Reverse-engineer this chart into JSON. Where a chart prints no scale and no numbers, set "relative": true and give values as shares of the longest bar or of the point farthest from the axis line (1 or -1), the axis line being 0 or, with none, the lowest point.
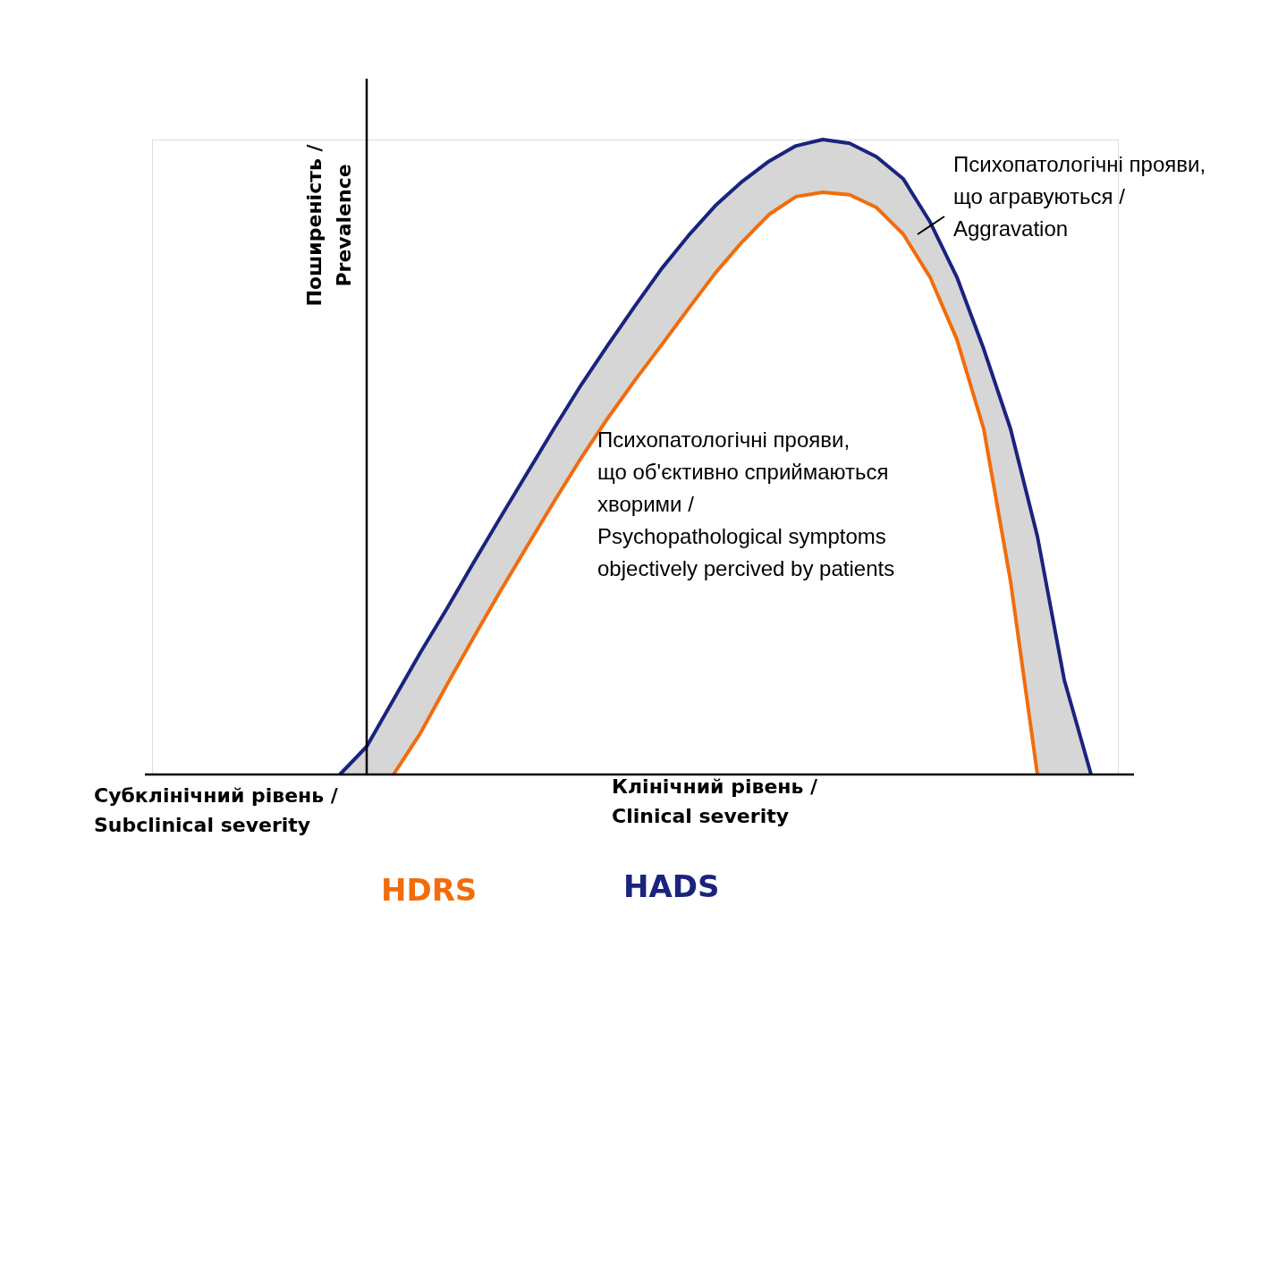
{
  "chart_data": {
    "type": "line",
    "relative": true,
    "legend": false,
    "line_style": "solid",
    "marker": "none",
    "ylabel": "Поширеність /\nPrevalence",
    "categories": [
      null,
      null,
      null,
      null,
      null,
      null,
      null,
      null,
      null,
      null,
      null,
      null,
      null,
      null,
      null,
      null,
      null,
      null,
      null,
      null,
      null,
      null,
      null,
      null,
      null,
      null,
      null,
      null,
      null,
      null,
      null,
      null,
      null,
      null,
      null,
      null,
      null
    ],
    "series": [
      {
        "name": "HADS",
        "color": "#1a237e",
        "values": [
          null,
          null,
          null,
          null,
          null,
          null,
          null,
          0,
          0.044,
          0.118,
          0.192,
          0.262,
          0.335,
          0.406,
          0.476,
          0.546,
          0.614,
          0.677,
          0.738,
          0.797,
          0.849,
          0.896,
          0.934,
          0.966,
          0.99,
          1.0,
          0.994,
          0.973,
          0.938,
          0.87,
          0.783,
          0.67,
          0.544,
          0.375,
          0.149,
          0,
          null
        ],
        "lower": [
          null,
          null,
          null,
          null,
          null,
          null,
          null,
          0,
          0,
          0,
          0.065,
          0.142,
          0.217,
          0.29,
          0.361,
          0.431,
          0.499,
          0.562,
          0.621,
          0.677,
          0.734,
          0.79,
          0.839,
          0.882,
          0.91,
          0.917,
          0.913,
          0.893,
          0.851,
          0.783,
          0.685,
          0.544,
          0.304,
          0,
          0,
          0,
          null
        ],
        "upper": [
          null,
          null,
          null,
          null,
          null,
          null,
          null,
          0,
          0.044,
          0.118,
          0.192,
          0.262,
          0.335,
          0.406,
          0.476,
          0.546,
          0.614,
          0.677,
          0.738,
          0.797,
          0.849,
          0.896,
          0.934,
          0.966,
          0.99,
          1.0,
          0.994,
          0.973,
          0.938,
          0.87,
          0.783,
          0.67,
          0.544,
          0.375,
          0.149,
          0,
          null
        ]
      },
      {
        "name": "HDRS",
        "color": "#f26c0d",
        "values": [
          null,
          null,
          null,
          null,
          null,
          null,
          null,
          null,
          null,
          0,
          0.065,
          0.142,
          0.217,
          0.29,
          0.361,
          0.431,
          0.499,
          0.562,
          0.621,
          0.677,
          0.734,
          0.79,
          0.839,
          0.882,
          0.91,
          0.917,
          0.913,
          0.893,
          0.851,
          0.783,
          0.685,
          0.544,
          0.304,
          0,
          null,
          null,
          null
        ]
      }
    ],
    "annotations": [
      "Психопатологічні прояви,\nщо агравуються  /\nAggravation",
      "Психопатологічні прояви,\nщо об'єктивно сприймаються\nхворими /\nPsychopathological symptoms\nobjectively percived by patients",
      "Субклінічний рівень /\nSubclinical severity",
      "Клінічний рівень /\nClinical severity"
    ]
  }
}
